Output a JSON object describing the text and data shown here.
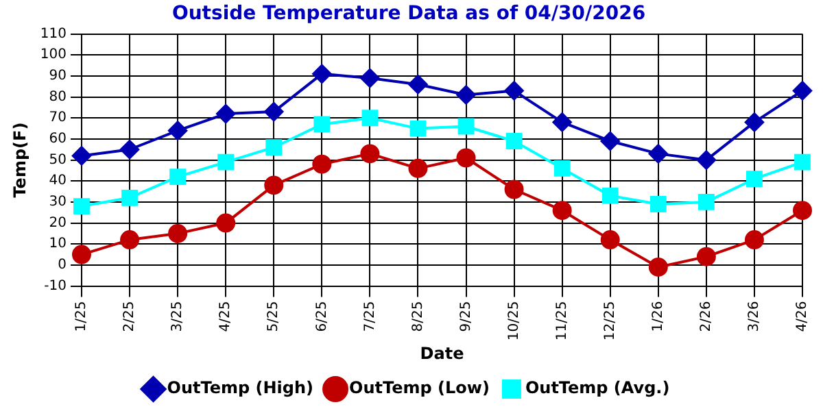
{
  "chart_data": {
    "type": "line",
    "title": "Outside Temperature Data as of 04/30/2026",
    "xlabel": "Date",
    "ylabel": "Temp(F)",
    "categories": [
      "1/25",
      "2/25",
      "3/25",
      "4/25",
      "5/25",
      "6/25",
      "7/25",
      "8/25",
      "9/25",
      "10/25",
      "11/25",
      "12/25",
      "1/26",
      "2/26",
      "3/26",
      "4/26"
    ],
    "series": [
      {
        "name": "OutTemp (High)",
        "color": "#0000b0",
        "marker": "diamond",
        "values": [
          52,
          55,
          64,
          72,
          73,
          91,
          89,
          86,
          81,
          83,
          68,
          59,
          53,
          50,
          68,
          83
        ]
      },
      {
        "name": "OutTemp (Low)",
        "color": "#c00000",
        "marker": "circle",
        "values": [
          5,
          12,
          15,
          20,
          38,
          48,
          53,
          46,
          51,
          36,
          26,
          12,
          -1,
          4,
          12,
          26
        ]
      },
      {
        "name": "OutTemp (Avg.)",
        "color": "#00ffff",
        "marker": "square",
        "values": [
          28,
          32,
          42,
          49,
          56,
          67,
          70,
          65,
          66,
          59,
          46,
          33,
          29,
          30,
          41,
          49
        ]
      }
    ],
    "ylim": [
      -10,
      110
    ],
    "yticks": [
      -10,
      0,
      10,
      20,
      30,
      40,
      50,
      60,
      70,
      80,
      90,
      100,
      110
    ],
    "grid": true,
    "legend": "bottom",
    "line_style": "solid"
  }
}
